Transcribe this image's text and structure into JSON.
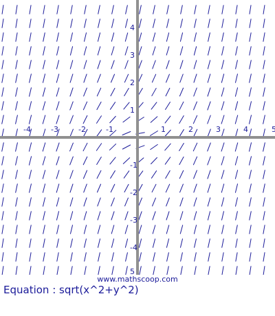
{
  "chart_data": {
    "type": "slope-field",
    "equation": "sqrt(x^2+y^2)",
    "xlim": [
      -5,
      5
    ],
    "ylim": [
      -5,
      5
    ],
    "x_tick_labels": [
      "-4",
      "-3",
      "-2",
      "-1",
      "1",
      "2",
      "3",
      "4",
      "5"
    ],
    "y_tick_labels": [
      "4",
      "3",
      "2",
      "1",
      "-1",
      "-2",
      "-3",
      "-4",
      "5"
    ],
    "grid": false,
    "colors": {
      "segments": "#1a1a99",
      "axes": "#909090",
      "text": "#1a1a99"
    }
  },
  "equation_label": "Equation : sqrt(x^2+y^2)",
  "watermark": "www.mathscoop.com"
}
